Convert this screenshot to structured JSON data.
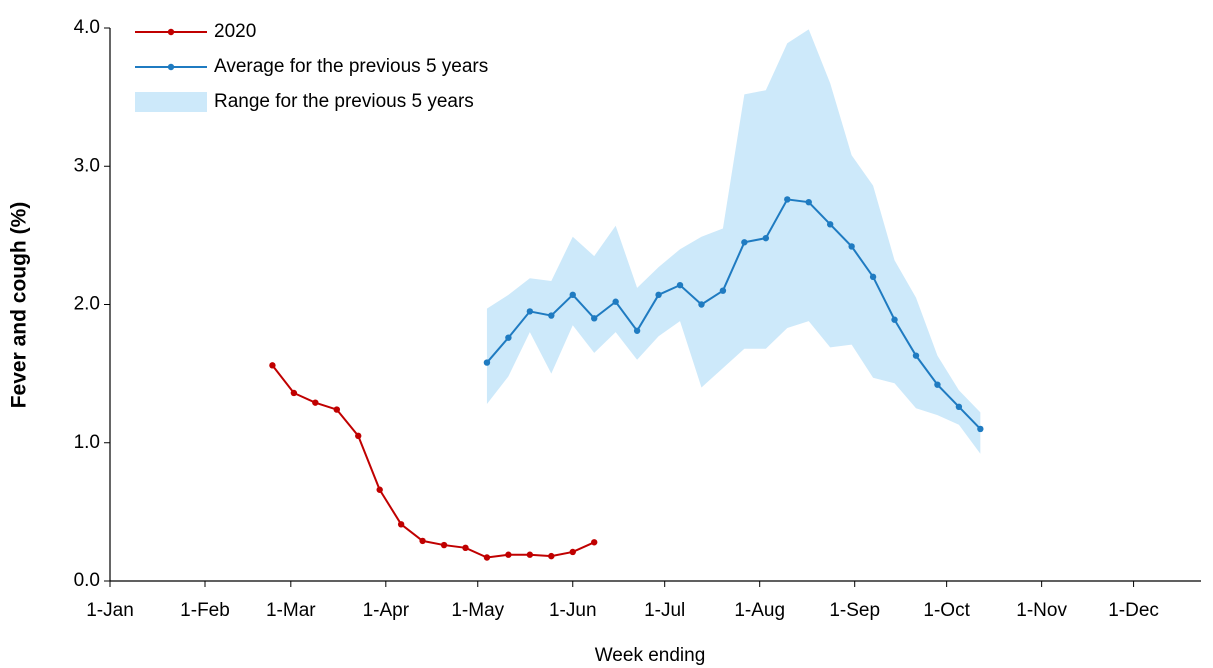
{
  "chart_data": {
    "type": "line",
    "x_label": "Week ending",
    "y_label": "Fever and cough (%)",
    "xlim": [
      0,
      356
    ],
    "ylim": [
      0,
      4
    ],
    "xticks": [
      {
        "value": 0,
        "label": "1-Jan"
      },
      {
        "value": 31,
        "label": "1-Feb"
      },
      {
        "value": 59,
        "label": "1-Mar"
      },
      {
        "value": 90,
        "label": "1-Apr"
      },
      {
        "value": 120,
        "label": "1-May"
      },
      {
        "value": 151,
        "label": "1-Jun"
      },
      {
        "value": 181,
        "label": "1-Jul"
      },
      {
        "value": 212,
        "label": "1-Aug"
      },
      {
        "value": 243,
        "label": "1-Sep"
      },
      {
        "value": 273,
        "label": "1-Oct"
      },
      {
        "value": 304,
        "label": "1-Nov"
      },
      {
        "value": 334,
        "label": "1-Dec"
      }
    ],
    "yticks": [
      {
        "value": 0,
        "label": "0.0"
      },
      {
        "value": 1,
        "label": "1.0"
      },
      {
        "value": 2,
        "label": "2.0"
      },
      {
        "value": 3,
        "label": "3.0"
      },
      {
        "value": 4,
        "label": "4.0"
      }
    ],
    "series": [
      {
        "name": "2020",
        "color": "#c00000",
        "x": [
          53,
          60,
          67,
          74,
          81,
          88,
          95,
          102,
          109,
          116,
          123,
          130,
          137,
          144,
          151,
          158
        ],
        "values": [
          1.56,
          1.36,
          1.29,
          1.24,
          1.05,
          0.66,
          0.41,
          0.29,
          0.26,
          0.24,
          0.17,
          0.19,
          0.19,
          0.18,
          0.21,
          0.28
        ]
      },
      {
        "name": "Average for the previous 5 years",
        "color": "#1f7bc1",
        "x": [
          123,
          130,
          137,
          144,
          151,
          158,
          165,
          172,
          179,
          186,
          193,
          200,
          207,
          214,
          221,
          228,
          235,
          242,
          249,
          256,
          263,
          270,
          277,
          284
        ],
        "values": [
          1.58,
          1.76,
          1.95,
          1.92,
          2.07,
          1.9,
          2.02,
          1.81,
          2.07,
          2.14,
          2.0,
          2.1,
          2.45,
          2.48,
          2.76,
          2.74,
          2.58,
          2.42,
          2.2,
          1.89,
          1.63,
          1.42,
          1.26,
          1.1
        ]
      }
    ],
    "range": {
      "name": "Range for the previous 5 years",
      "color": "#cde9fa",
      "x": [
        123,
        130,
        137,
        144,
        151,
        158,
        165,
        172,
        179,
        186,
        193,
        200,
        207,
        214,
        221,
        228,
        235,
        242,
        249,
        256,
        263,
        270,
        277,
        284
      ],
      "upper": [
        1.97,
        2.07,
        2.19,
        2.17,
        2.49,
        2.35,
        2.57,
        2.12,
        2.27,
        2.4,
        2.49,
        2.55,
        3.52,
        3.55,
        3.89,
        3.99,
        3.6,
        3.08,
        2.86,
        2.32,
        2.05,
        1.63,
        1.38,
        1.22
      ],
      "lower": [
        1.28,
        1.48,
        1.8,
        1.5,
        1.85,
        1.65,
        1.8,
        1.6,
        1.77,
        1.88,
        1.4,
        1.54,
        1.68,
        1.68,
        1.83,
        1.88,
        1.69,
        1.71,
        1.47,
        1.43,
        1.25,
        1.2,
        1.13,
        0.92
      ]
    }
  }
}
